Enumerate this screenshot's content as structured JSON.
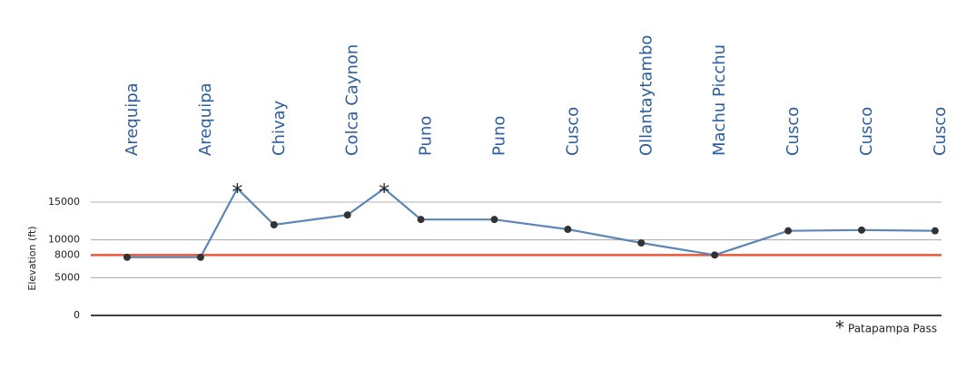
{
  "chart_data": {
    "type": "line",
    "y_label": "Elevation (ft)",
    "categories": [
      "Arequipa",
      "Arequipa",
      "Chivay",
      "Colca Caynon",
      "Puno",
      "Puno",
      "Cusco",
      "Ollantaytambo",
      "Machu Picchu",
      "Cusco",
      "Cusco",
      "Cusco"
    ],
    "x": [
      0,
      1,
      1.5,
      2,
      3,
      3.5,
      4,
      5,
      6,
      7,
      8,
      9,
      10,
      11
    ],
    "values": [
      7700,
      7700,
      16800,
      12000,
      13300,
      16800,
      12700,
      12700,
      11400,
      9600,
      8000,
      11200,
      11300,
      11200
    ],
    "markers": [
      "dot",
      "dot",
      "asterisk",
      "dot",
      "dot",
      "asterisk",
      "dot",
      "dot",
      "dot",
      "dot",
      "dot",
      "dot",
      "dot",
      "dot"
    ],
    "color": "#5b86b8",
    "legend_label": "Patapampa Pass",
    "reference_line": {
      "value": 8000,
      "color": "#e8553a"
    },
    "ylim": [
      0,
      15000
    ],
    "yticks": [
      0,
      5000,
      8000,
      10000,
      15000
    ],
    "grid": true
  }
}
